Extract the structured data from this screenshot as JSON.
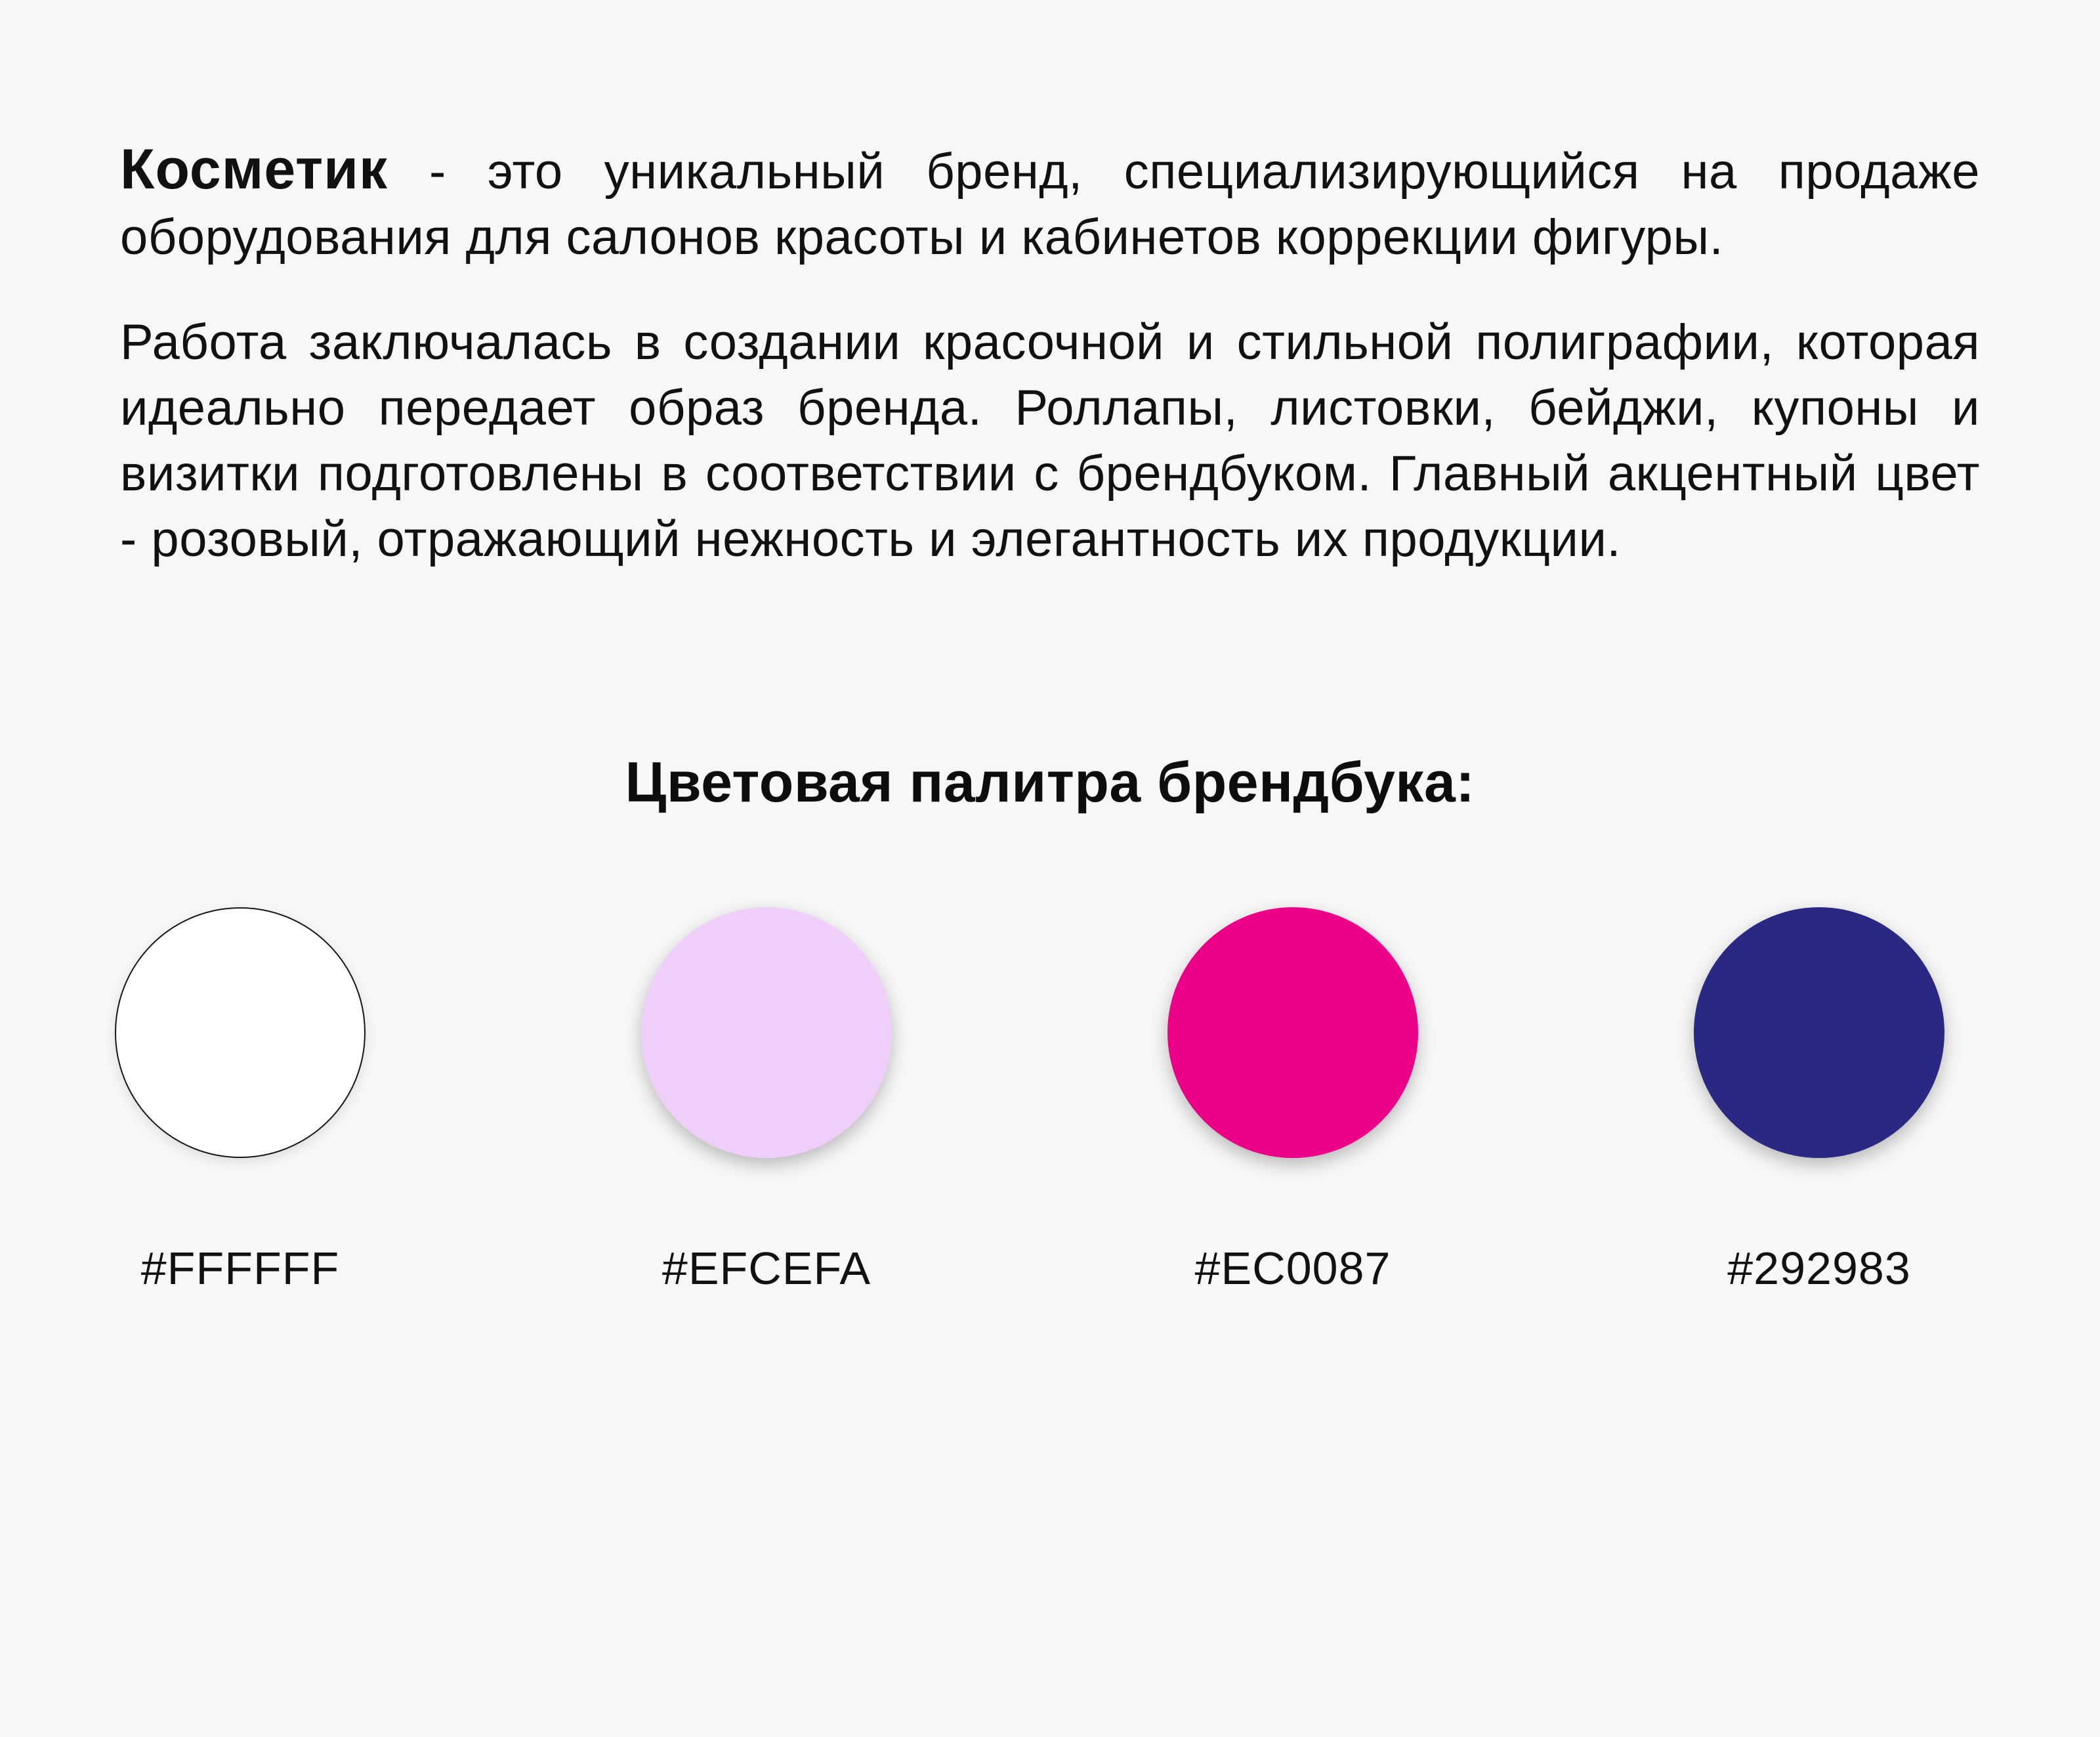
{
  "page": {
    "background_color": "#F7F7F7",
    "text_color": "#111111"
  },
  "about": {
    "brand_name": "Косметик",
    "intro_rest": " - это уникальный бренд, специализирующийся на продаже оборудования для салонов красоты и кабинетов коррекции фигуры.",
    "description": "Работа заключалась в создании красочной и стильной полиграфии, которая идеально передает образ бренда. Роллапы, листовки, бейджи, купоны и визитки подготовлены в соответствии с брендбуком. Главный акцентный цвет - розовый, отражающий нежность и элегантность их продукции."
  },
  "palette": {
    "heading": "Цветовая палитра брендбука:",
    "swatches": [
      {
        "label": "#FFFFFF",
        "color": "#FFFFFF",
        "outlined": true
      },
      {
        "label": "#EFCEFA",
        "color": "#EFCEFA",
        "outlined": false
      },
      {
        "label": "#EC0087",
        "color": "#EC0087",
        "outlined": false
      },
      {
        "label": "#292983",
        "color": "#292983",
        "outlined": false
      }
    ]
  }
}
